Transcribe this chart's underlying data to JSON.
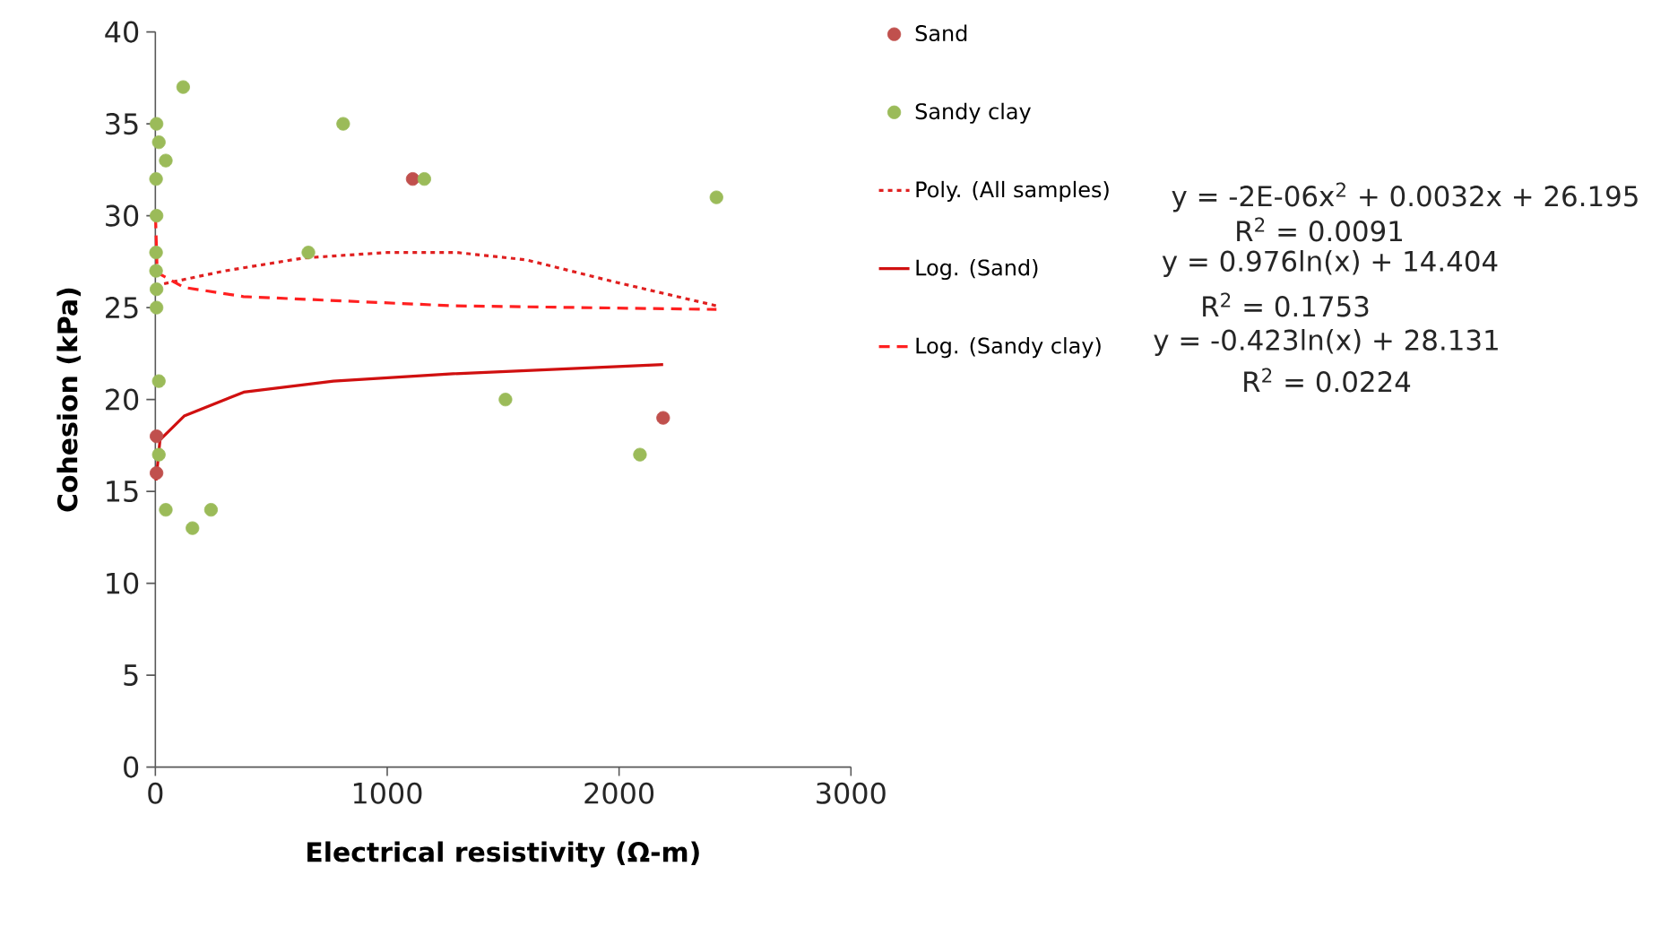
{
  "chart_data": {
    "type": "scatter",
    "xlabel": "Electrical resistivity (Ω-m)",
    "ylabel": "Cohesion (kPa)",
    "xlim": [
      0,
      3000
    ],
    "xticks": [
      0,
      1000,
      2000,
      3000
    ],
    "ylim": [
      0,
      40
    ],
    "yticks": [
      0,
      5,
      10,
      15,
      20,
      25,
      30,
      35,
      40
    ],
    "grid": false,
    "legend": "right",
    "series": [
      {
        "name": "Sand",
        "marker": "circle",
        "color": "#c0504d",
        "x": [
          5,
          5,
          1110,
          2190
        ],
        "values": [
          18,
          16,
          32,
          19
        ]
      },
      {
        "name": "Sandy clay",
        "marker": "circle",
        "color": "#9bbb59",
        "x": [
          1160,
          2420,
          660,
          1510,
          2090,
          120,
          810,
          5,
          15,
          45,
          3,
          5,
          3,
          3,
          5,
          5,
          15,
          15,
          45,
          240,
          160
        ],
        "values": [
          32,
          31,
          28,
          20,
          17,
          37,
          35,
          35,
          34,
          33,
          32,
          30,
          28,
          27,
          26,
          25,
          21,
          17,
          14,
          14,
          13
        ]
      },
      {
        "name": "Poly. (All samples)",
        "type": "line",
        "line_style": "dotted",
        "marker": "none",
        "color": "#e02020",
        "x": [
          0,
          300,
          640,
          1000,
          1300,
          1600,
          1980,
          2420
        ],
        "values": [
          26.2,
          27.0,
          27.7,
          28,
          28,
          27.6,
          26.4,
          25.1
        ]
      },
      {
        "name": "Log. (Sand)",
        "type": "line",
        "line_style": "solid",
        "marker": "none",
        "color": "#d01010",
        "x": [
          3,
          20,
          124,
          381,
          768,
          1284,
          2190
        ],
        "values": [
          15.6,
          17.8,
          19.1,
          20.4,
          21.0,
          21.4,
          21.9
        ]
      },
      {
        "name": "Log. (Sandy clay)",
        "type": "line",
        "line_style": "dashed",
        "marker": "none",
        "color": "#ff2020",
        "x": [
          1,
          8,
          124,
          380,
          1284,
          2420
        ],
        "values": [
          29.9,
          26.9,
          26.1,
          25.6,
          25.1,
          24.9
        ]
      }
    ],
    "annotations": [
      "y = -2E-06x$^{2}$ + 0.0032x + 26.195",
      "R$^{2}$ = 0.0091",
      "y = 0.976ln(x) + 14.404",
      "R$^{2}$ = 0.1753",
      "y = -0.423ln(x) + 28.131",
      "R$^{2}$ = 0.0224"
    ]
  }
}
